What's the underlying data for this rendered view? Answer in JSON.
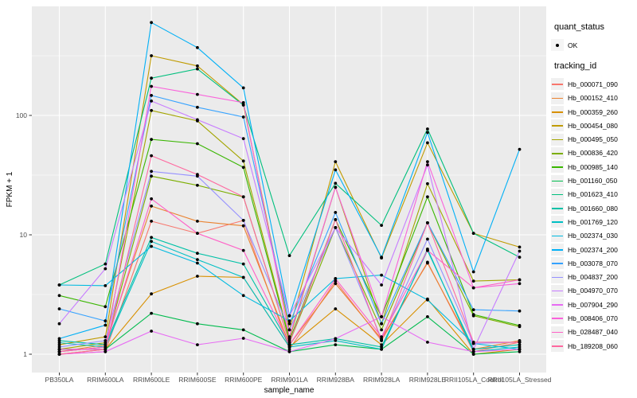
{
  "figure": {
    "panel_background": "#EBEBEB",
    "grid_color": "#FFFFFF",
    "axis_text_color": "#4D4D4D",
    "point_color": "#000000",
    "legend_key_background": "#F0F0F0"
  },
  "legend": {
    "quant_status_title": "quant_status",
    "quant_status_items": [
      {
        "label": "OK",
        "marker": "point-icon"
      }
    ],
    "tracking_id_title": "tracking_id"
  },
  "chart_data": {
    "type": "line",
    "title": "",
    "xlabel": "sample_name",
    "ylabel": "FPKM + 1",
    "y_scale": "log10",
    "y_major_ticks": [
      1,
      10,
      100
    ],
    "y_minor_ticks": [
      3.162,
      31.62,
      316.2
    ],
    "ylim": [
      0.7,
      800
    ],
    "grid": true,
    "legend_position": "right",
    "categories": [
      "PB350LA",
      "RRIM600LA",
      "RRIM600LE",
      "RRIM600SE",
      "RRIM600PE",
      "RRIM901LA",
      "RRIM928BA",
      "RRIM928LA",
      "RRIM928LE",
      "RRII105LA_Control",
      "RRII105LA_Stressed"
    ],
    "series": [
      {
        "name": "Hb_000071_090",
        "color": "#F8766D",
        "values": [
          1.0,
          1.05,
          13.0,
          10.3,
          13.2,
          1.1,
          4.1,
          1.3,
          5.9,
          1.05,
          1.26
        ]
      },
      {
        "name": "Hb_000152_410",
        "color": "#EA8331",
        "values": [
          1.05,
          1.2,
          17.4,
          13.0,
          11.9,
          1.2,
          3.9,
          1.34,
          5.8,
          1.1,
          1.3
        ]
      },
      {
        "name": "Hb_000359_260",
        "color": "#D89000",
        "values": [
          1.0,
          1.1,
          3.2,
          4.5,
          4.4,
          1.15,
          2.4,
          1.2,
          2.9,
          1.0,
          1.1
        ]
      },
      {
        "name": "Hb_000454_080",
        "color": "#C09B00",
        "values": [
          1.2,
          1.4,
          316,
          260,
          123,
          1.6,
          41,
          6.4,
          59,
          10.3,
          7.9
        ]
      },
      {
        "name": "Hb_000495_050",
        "color": "#A3A500",
        "values": [
          1.1,
          1.25,
          110,
          90,
          41.5,
          1.35,
          25,
          1.8,
          26.8,
          4.1,
          4.2
        ]
      },
      {
        "name": "Hb_000836_420",
        "color": "#7CAE00",
        "values": [
          1.05,
          1.15,
          31,
          26,
          20.8,
          1.25,
          11.5,
          1.6,
          12.6,
          2.1,
          1.7
        ]
      },
      {
        "name": "Hb_000985_140",
        "color": "#39B600",
        "values": [
          3.1,
          2.5,
          63,
          58,
          36.7,
          1.3,
          13.4,
          2.06,
          20.8,
          2.15,
          1.74
        ]
      },
      {
        "name": "Hb_001160_050",
        "color": "#00BB4E",
        "values": [
          1.1,
          1.1,
          2.2,
          1.8,
          1.6,
          1.05,
          1.2,
          1.1,
          2.06,
          1.0,
          1.05
        ]
      },
      {
        "name": "Hb_001623_410",
        "color": "#00BF7D",
        "values": [
          3.8,
          5.7,
          205,
          245,
          122,
          6.7,
          27,
          12.0,
          77,
          10.3,
          6.5
        ]
      },
      {
        "name": "Hb_001660_080",
        "color": "#00C1A7",
        "values": [
          1.3,
          1.2,
          9.5,
          7.0,
          5.7,
          1.2,
          1.35,
          1.15,
          7.4,
          1.1,
          1.2
        ]
      },
      {
        "name": "Hb_001769_120",
        "color": "#00BFC4",
        "values": [
          1.25,
          1.15,
          8.8,
          6.2,
          4.4,
          1.15,
          1.3,
          1.1,
          7.6,
          1.05,
          1.15
        ]
      },
      {
        "name": "Hb_002374_030",
        "color": "#00BAE0",
        "values": [
          3.8,
          3.75,
          8.0,
          5.8,
          3.1,
          1.9,
          4.3,
          4.6,
          2.85,
          1.23,
          1.1
        ]
      },
      {
        "name": "Hb_002374_200",
        "color": "#00B0F6",
        "values": [
          1.35,
          1.75,
          600,
          370,
          170,
          2.1,
          35,
          6.5,
          72,
          4.9,
          52
        ]
      },
      {
        "name": "Hb_003078_070",
        "color": "#35A2FF",
        "values": [
          2.4,
          1.9,
          147,
          117,
          97,
          1.8,
          15.4,
          1.8,
          12.6,
          2.36,
          2.3
        ]
      },
      {
        "name": "Hb_004837_200",
        "color": "#9590FF",
        "values": [
          1.15,
          1.3,
          34,
          31,
          13.2,
          1.6,
          11.5,
          1.34,
          9.2,
          1.23,
          1.26
        ]
      },
      {
        "name": "Hb_004970_070",
        "color": "#C77CFF",
        "values": [
          1.8,
          5.2,
          132,
          92,
          64,
          2.1,
          11.5,
          3.8,
          38.5,
          1.1,
          7.3
        ]
      },
      {
        "name": "Hb_007904_290",
        "color": "#E76BF3",
        "values": [
          1.0,
          1.05,
          1.56,
          1.2,
          1.36,
          1.05,
          1.35,
          2.06,
          1.26,
          1.05,
          1.1
        ]
      },
      {
        "name": "Hb_008406_070",
        "color": "#FA62DB",
        "values": [
          1.1,
          1.1,
          175,
          150,
          128,
          1.4,
          25,
          2.06,
          41,
          3.6,
          3.9
        ]
      },
      {
        "name": "Hb_028487_040",
        "color": "#FF61C7",
        "values": [
          1.05,
          1.15,
          20,
          10.3,
          7.4,
          1.2,
          4.3,
          1.4,
          7.4,
          3.6,
          4.2
        ]
      },
      {
        "name": "Hb_189208_060",
        "color": "#FF689F",
        "values": [
          1.0,
          1.1,
          46,
          32,
          20.8,
          1.25,
          13.4,
          1.3,
          12.6,
          1.26,
          1.26
        ]
      }
    ]
  }
}
